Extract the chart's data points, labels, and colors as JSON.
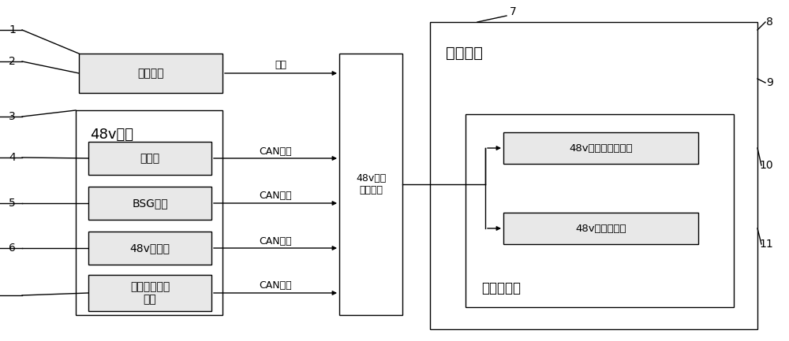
{
  "bg_color": "#ffffff",
  "line_color": "#000000",
  "box_fill": "#e8e8e8",
  "boxes": {
    "ignition": "点火开关",
    "system48v": "48v系统",
    "engine": "发动机",
    "bsg": "BSG电机",
    "battery": "48v锂电池",
    "hev": "混合动力控制\n单元",
    "calc": "48v节油\n计算模块",
    "instrument": "仪表总成",
    "lcd": "仪表液晶屏",
    "fuel_pct": "48v本次节油百分比",
    "mileage": "48v已增加里程"
  },
  "arrow_labels": {
    "hardwire": "硬线",
    "can1": "CAN总线",
    "can2": "CAN总线",
    "can3": "CAN总线",
    "can4": "CAN总线"
  },
  "ref_numbers": {
    "n1": "1",
    "n2": "2",
    "n3": "3",
    "n4": "4",
    "n5": "5",
    "n6": "6",
    "n7": "7",
    "n8": "8",
    "n9": "9",
    "n10": "10",
    "n11": "11"
  }
}
